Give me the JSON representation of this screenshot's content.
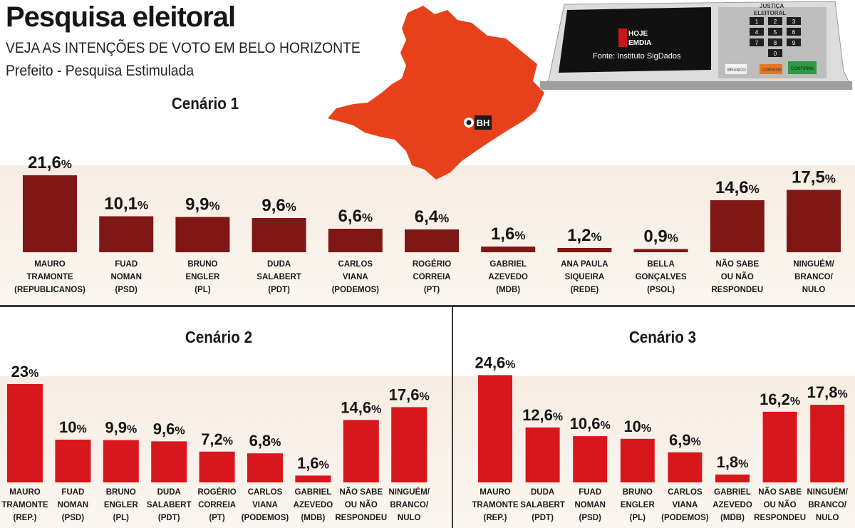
{
  "header": {
    "title": "Pesquisa eleitoral",
    "subtitle": "VEJA AS INTENÇÕES DE VOTO EM BELO HORIZONTE",
    "subsubtitle": "Prefeito - Pesquisa Estimulada"
  },
  "map": {
    "city_label": "BH"
  },
  "urn": {
    "brand_line1": "HOJE",
    "brand_line2": "EMDIA",
    "source": "Fonte: Instituto SigDados",
    "panel_label_1": "JUSTIÇA",
    "panel_label_2": "ELEITORAL",
    "key_branco": "BRANCO",
    "key_corrige": "CORRIGE",
    "key_confirma": "CONFIRMA",
    "keys": [
      "1",
      "2",
      "3",
      "4",
      "5",
      "6",
      "7",
      "8",
      "9",
      "0"
    ]
  },
  "colors": {
    "cenario1": "#7f1715",
    "cenario2_3": "#d8171c",
    "map": "#e8401a"
  },
  "chart_data": [
    {
      "type": "bar",
      "title": "Cenário 1",
      "ylim": [
        0,
        25
      ],
      "grid": false,
      "categories": [
        [
          "MAURO",
          "TRAMONTE",
          "(REPUBLICANOS)"
        ],
        [
          "FUAD",
          "NOMAN",
          "(PSD)"
        ],
        [
          "BRUNO",
          "ENGLER",
          "(PL)"
        ],
        [
          "DUDA",
          "SALABERT",
          "(PDT)"
        ],
        [
          "CARLOS",
          "VIANA",
          "(PODEMOS)"
        ],
        [
          "ROGÉRIO",
          "CORREIA",
          "(PT)"
        ],
        [
          "GABRIEL",
          "AZEVEDO",
          "(MDB)"
        ],
        [
          "ANA PAULA",
          "SIQUEIRA",
          "(REDE)"
        ],
        [
          "BELLA",
          "GONÇALVES",
          "(PSOL)"
        ],
        [
          "NÃO SABE",
          "OU NÃO",
          "RESPONDEU"
        ],
        [
          "NINGUÉM/",
          "BRANCO/",
          "NULO"
        ]
      ],
      "values": [
        21.6,
        10.1,
        9.9,
        9.6,
        6.6,
        6.4,
        1.6,
        1.2,
        0.9,
        14.6,
        17.5
      ],
      "value_labels": [
        "21,6",
        "10,1",
        "9,9",
        "9,6",
        "6,6",
        "6,4",
        "1,6",
        "1,2",
        "0,9",
        "14,6",
        "17,5"
      ]
    },
    {
      "type": "bar",
      "title": "Cenário 2",
      "ylim": [
        0,
        25
      ],
      "grid": false,
      "categories": [
        [
          "MAURO",
          "TRAMONTE",
          "(REP.)"
        ],
        [
          "FUAD",
          "NOMAN",
          "(PSD)"
        ],
        [
          "BRUNO",
          "ENGLER",
          "(PL)"
        ],
        [
          "DUDA",
          "SALABERT",
          "(PDT)"
        ],
        [
          "ROGÉRIO",
          "CORREIA",
          "(PT)"
        ],
        [
          "CARLOS",
          "VIANA",
          "(PODEMOS)"
        ],
        [
          "GABRIEL",
          "AZEVEDO",
          "(MDB)"
        ],
        [
          "NÃO SABE",
          "OU NÃO",
          "RESPONDEU"
        ],
        [
          "NINGUÉM/",
          "BRANCO/",
          "NULO"
        ]
      ],
      "values": [
        23,
        10,
        9.9,
        9.6,
        7.2,
        6.8,
        1.6,
        14.6,
        17.6
      ],
      "value_labels": [
        "23",
        "10",
        "9,9",
        "9,6",
        "7,2",
        "6,8",
        "1,6",
        "14,6",
        "17,6"
      ]
    },
    {
      "type": "bar",
      "title": "Cenário 3",
      "ylim": [
        0,
        25
      ],
      "grid": false,
      "categories": [
        [
          "MAURO",
          "TRAMONTE",
          "(REP.)"
        ],
        [
          "DUDA",
          "SALABERT",
          "(PDT)"
        ],
        [
          "FUAD",
          "NOMAN",
          "(PSD)"
        ],
        [
          "BRUNO",
          "ENGLER",
          "(PL)"
        ],
        [
          "CARLOS",
          "VIANA",
          "(PODEMOS)"
        ],
        [
          "GABRIEL",
          "AZEVEDO",
          "(MDB)"
        ],
        [
          "NÃO SABE",
          "OU NÃO",
          "RESPONDEU"
        ],
        [
          "NINGUÉM/",
          "BRANCO/",
          "NULO"
        ]
      ],
      "values": [
        24.6,
        12.6,
        10.6,
        10,
        6.9,
        1.8,
        16.2,
        17.8
      ],
      "value_labels": [
        "24,6",
        "12,6",
        "10,6",
        "10",
        "6,9",
        "1,8",
        "16,2",
        "17,8"
      ]
    }
  ]
}
